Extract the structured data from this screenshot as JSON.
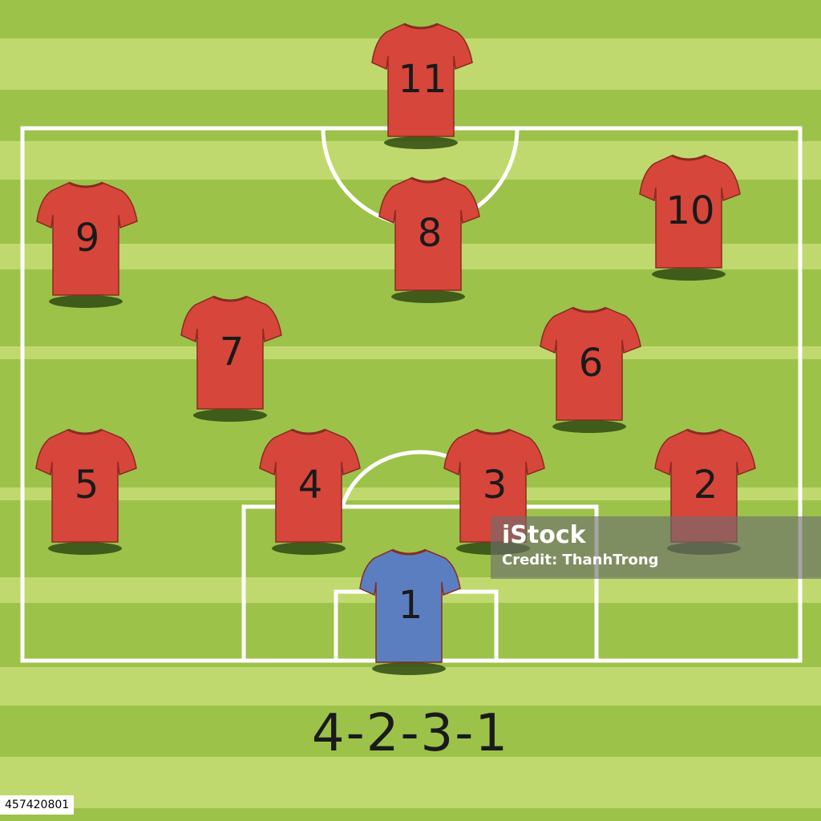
{
  "formation": "4-2-3-1",
  "colors": {
    "outfield_shirt": "#d7463a",
    "goalkeeper_shirt": "#5b7ec1",
    "pitch_light": "#c0d96e",
    "pitch_dark": "#9cc24a",
    "lines": "#ffffff"
  },
  "players": [
    {
      "number": "11",
      "role": "outfield"
    },
    {
      "number": "9",
      "role": "outfield"
    },
    {
      "number": "8",
      "role": "outfield"
    },
    {
      "number": "10",
      "role": "outfield"
    },
    {
      "number": "7",
      "role": "outfield"
    },
    {
      "number": "6",
      "role": "outfield"
    },
    {
      "number": "5",
      "role": "outfield"
    },
    {
      "number": "4",
      "role": "outfield"
    },
    {
      "number": "3",
      "role": "outfield"
    },
    {
      "number": "2",
      "role": "outfield"
    },
    {
      "number": "1",
      "role": "goalkeeper"
    }
  ],
  "watermark": {
    "logo": "iStock",
    "credit": "Credit: ThanhTrong"
  },
  "image_id": "457420801"
}
